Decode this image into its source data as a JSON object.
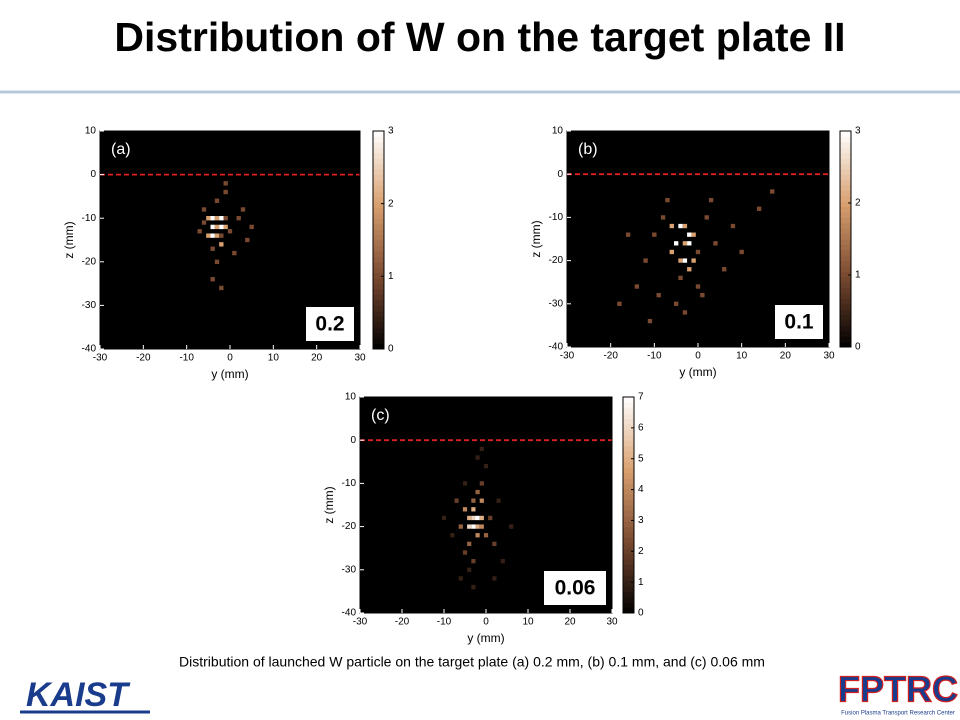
{
  "title": "Distribution of W on the target plate II",
  "caption": "Distribution of launched W particle on the target plate (a) 0.2 mm, (b) 0.1 mm, and (c) 0.06 mm",
  "logos": {
    "left": "KAIST",
    "right": "FPTRC",
    "right_sub": "Fusion Plasma Transport Research Center"
  },
  "chart_data": [
    {
      "type": "heatmap",
      "panel_label": "(a)",
      "annotation": "0.2",
      "xlabel": "y (mm)",
      "ylabel": "z (mm)",
      "xlim": [
        -30,
        30
      ],
      "xticks": [
        -30,
        -20,
        -10,
        0,
        10,
        20,
        30
      ],
      "ylim": [
        -40,
        10
      ],
      "yticks": [
        -40,
        -30,
        -20,
        -10,
        0,
        10
      ],
      "clim": [
        0,
        3
      ],
      "cticks": [
        0,
        1,
        2,
        3
      ],
      "colormap": [
        "#000000",
        "#7a4a30",
        "#d9a070",
        "#ffffff"
      ],
      "reference_line": 0,
      "reference_color": "#e02020",
      "bin": 1,
      "x": [
        -5,
        -4,
        -3,
        -2,
        -1,
        -4,
        -3,
        -2,
        -1,
        -5,
        -4,
        -3,
        -2,
        -6,
        -3,
        -1,
        -2,
        -4,
        0,
        2,
        3,
        5,
        -6,
        -1,
        -3,
        4,
        -2,
        -4,
        1,
        -7
      ],
      "y": [
        -10,
        -10,
        -10,
        -10,
        -10,
        -12,
        -12,
        -12,
        -12,
        -14,
        -14,
        -14,
        -14,
        -8,
        -6,
        -4,
        -16,
        -17,
        -13,
        -10,
        -8,
        -12,
        -11,
        -2,
        -20,
        -15,
        -26,
        -24,
        -18,
        -13
      ],
      "values": [
        2,
        3,
        2,
        3,
        1,
        3,
        2,
        3,
        2,
        2,
        3,
        2,
        1,
        1,
        1,
        1,
        2,
        1,
        1,
        1,
        1,
        1,
        1,
        1,
        1,
        1,
        1,
        1,
        1,
        1
      ]
    },
    {
      "type": "heatmap",
      "panel_label": "(b)",
      "annotation": "0.1",
      "xlabel": "y (mm)",
      "ylabel": "z (mm)",
      "xlim": [
        -30,
        30
      ],
      "xticks": [
        -30,
        -20,
        -10,
        0,
        10,
        20,
        30
      ],
      "ylim": [
        -40,
        10
      ],
      "yticks": [
        -40,
        -30,
        -20,
        -10,
        0,
        10
      ],
      "clim": [
        0,
        3
      ],
      "cticks": [
        0,
        1,
        2,
        3
      ],
      "colormap": [
        "#000000",
        "#7a4a30",
        "#d9a070",
        "#ffffff"
      ],
      "reference_line": 0,
      "reference_color": "#e02020",
      "bin": 1,
      "x": [
        -6,
        -4,
        -3,
        -2,
        -1,
        -5,
        -3,
        -2,
        0,
        -4,
        -3,
        -1,
        -6,
        -2,
        -4,
        -8,
        -10,
        2,
        4,
        -12,
        -14,
        6,
        -9,
        1,
        -5,
        -3,
        -7,
        3,
        8,
        -16,
        10,
        14,
        -18,
        -11,
        0,
        17
      ],
      "y": [
        -12,
        -12,
        -12,
        -14,
        -14,
        -16,
        -16,
        -16,
        -18,
        -20,
        -20,
        -20,
        -18,
        -22,
        -24,
        -10,
        -14,
        -10,
        -16,
        -20,
        -26,
        -22,
        -28,
        -28,
        -30,
        -32,
        -6,
        -6,
        -12,
        -14,
        -18,
        -8,
        -30,
        -34,
        -26,
        -4
      ],
      "values": [
        2,
        3,
        2,
        3,
        2,
        3,
        2,
        3,
        1,
        2,
        3,
        2,
        2,
        2,
        1,
        1,
        1,
        1,
        1,
        1,
        1,
        1,
        1,
        1,
        1,
        1,
        1,
        1,
        1,
        1,
        1,
        1,
        1,
        1,
        1,
        1
      ]
    },
    {
      "type": "heatmap",
      "panel_label": "(c)",
      "annotation": "0.06",
      "xlabel": "y (mm)",
      "ylabel": "z (mm)",
      "xlim": [
        -30,
        30
      ],
      "xticks": [
        -30,
        -20,
        -10,
        0,
        10,
        20,
        30
      ],
      "ylim": [
        -40,
        10
      ],
      "yticks": [
        -40,
        -30,
        -20,
        -10,
        0,
        10
      ],
      "clim": [
        0,
        7
      ],
      "cticks": [
        0,
        1,
        2,
        3,
        4,
        5,
        6,
        7
      ],
      "colormap": [
        "#000000",
        "#7a4a30",
        "#d9a070",
        "#ffffff"
      ],
      "reference_line": 0,
      "reference_color": "#e02020",
      "bin": 1,
      "x": [
        -4,
        -3,
        -2,
        -1,
        -4,
        -3,
        -2,
        -1,
        -5,
        -3,
        -2,
        0,
        -4,
        -3,
        -1,
        -2,
        -5,
        -6,
        1,
        -3,
        -1,
        -7,
        2,
        -4,
        0,
        -2,
        -8,
        3,
        -6,
        4,
        -3,
        -10,
        6,
        -1,
        -5,
        2
      ],
      "y": [
        -18,
        -18,
        -18,
        -18,
        -20,
        -20,
        -20,
        -20,
        -16,
        -16,
        -22,
        -22,
        -24,
        -14,
        -14,
        -12,
        -26,
        -20,
        -18,
        -28,
        -10,
        -14,
        -24,
        -30,
        -6,
        -4,
        -22,
        -14,
        -32,
        -28,
        -34,
        -18,
        -20,
        -2,
        -10,
        -32
      ],
      "values": [
        5,
        6,
        7,
        5,
        6,
        7,
        5,
        4,
        4,
        5,
        4,
        3,
        3,
        3,
        4,
        3,
        2,
        3,
        2,
        2,
        2,
        2,
        2,
        1,
        1,
        1,
        1,
        1,
        1,
        1,
        1,
        1,
        1,
        1,
        1,
        1
      ]
    }
  ]
}
